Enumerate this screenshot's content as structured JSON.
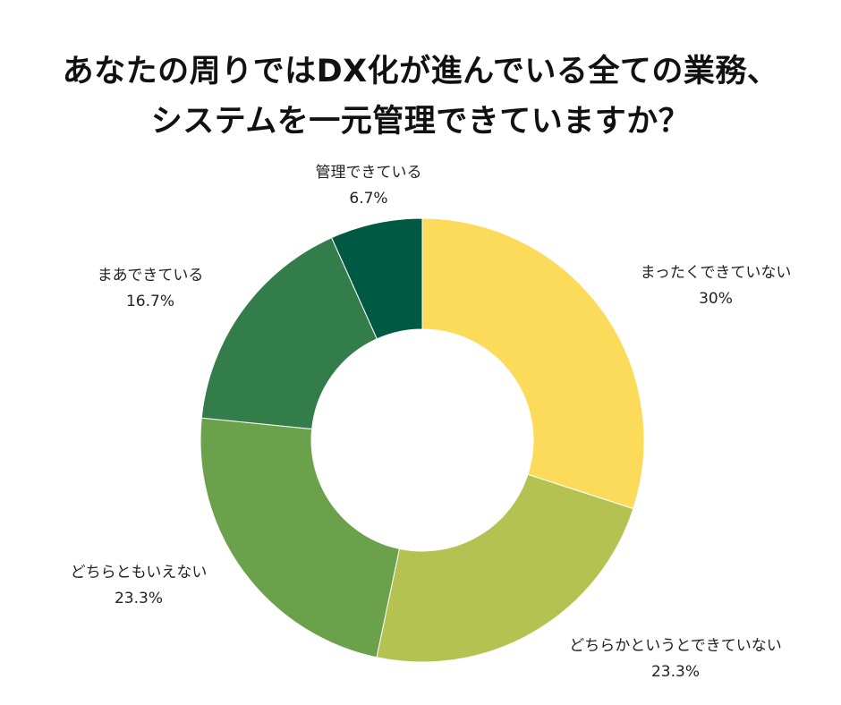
{
  "chart_data": {
    "type": "pie",
    "title_lines": [
      "あなたの周りではDX化が進んでいる全ての業務、",
      "システムを一元管理できていますか？"
    ],
    "donut": true,
    "start_angle_deg": 0,
    "direction": "clockwise",
    "slices": [
      {
        "label": "まったくできていない",
        "value": 30,
        "value_label": "30%",
        "color": "#FDDB5A"
      },
      {
        "label": "どちらかというとできていない",
        "value": 23.3,
        "value_label": "23.3%",
        "color": "#B3C250"
      },
      {
        "label": "どちらともいえない",
        "value": 23.3,
        "value_label": "23.3%",
        "color": "#6BA14A"
      },
      {
        "label": "まあできている",
        "value": 16.7,
        "value_label": "16.7%",
        "color": "#337D4A"
      },
      {
        "label": "管理できている",
        "value": 6.7,
        "value_label": "6.7%",
        "color": "#005A43"
      }
    ],
    "legend": "none"
  }
}
